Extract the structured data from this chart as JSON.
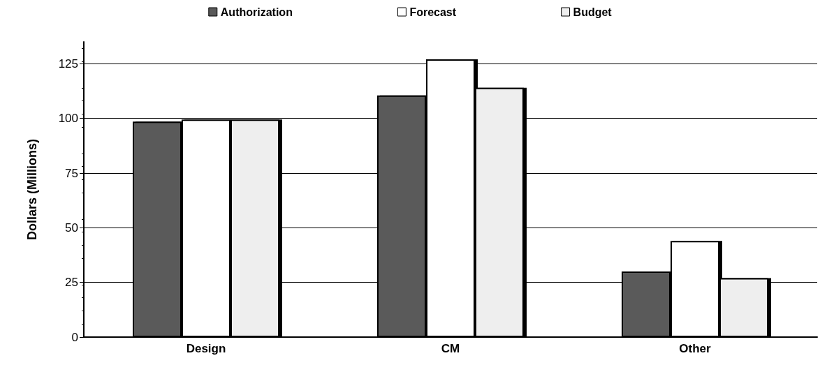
{
  "chart_data": {
    "type": "bar",
    "ylabel": "Dollars (Millions)",
    "categories": [
      "Design",
      "CM",
      "Other"
    ],
    "series": [
      {
        "name": "Authorization",
        "color": "#5a5a5a",
        "values": [
          98.5,
          110.5,
          30
        ]
      },
      {
        "name": "Forecast",
        "color": "#ffffff",
        "values": [
          99.5,
          127,
          44
        ]
      },
      {
        "name": "Budget",
        "color": "#eeeeee",
        "values": [
          99.5,
          114,
          27
        ]
      }
    ],
    "ylim": [
      0,
      135
    ],
    "yticks": [
      0,
      25,
      50,
      75,
      100,
      125
    ],
    "grid": "y",
    "legend": "top"
  }
}
